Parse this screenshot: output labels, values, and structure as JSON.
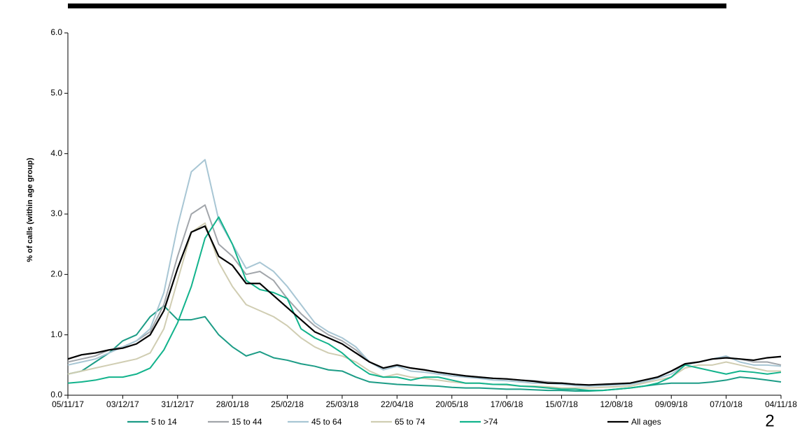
{
  "page_number": "2",
  "chart_data": {
    "type": "line",
    "y_label": "% of calls (within age group)",
    "x": [
      "05/11/17",
      "12/11/17",
      "19/11/17",
      "26/11/17",
      "03/12/17",
      "10/12/17",
      "17/12/17",
      "24/12/17",
      "31/12/17",
      "07/01/18",
      "14/01/18",
      "21/01/18",
      "28/01/18",
      "04/02/18",
      "11/02/18",
      "18/02/18",
      "25/02/18",
      "04/03/18",
      "11/03/18",
      "18/03/18",
      "25/03/18",
      "01/04/18",
      "08/04/18",
      "15/04/18",
      "22/04/18",
      "29/04/18",
      "06/05/18",
      "13/05/18",
      "20/05/18",
      "27/05/18",
      "03/06/18",
      "10/06/18",
      "17/06/18",
      "24/06/18",
      "01/07/18",
      "08/07/18",
      "15/07/18",
      "22/07/18",
      "29/07/18",
      "05/08/18",
      "12/08/18",
      "19/08/18",
      "26/08/18",
      "02/09/18",
      "09/09/18",
      "16/09/18",
      "23/09/18",
      "30/09/18",
      "07/10/18",
      "14/10/18",
      "21/10/18",
      "28/10/18",
      "04/11/18"
    ],
    "xlim": [
      "05/11/17",
      "04/11/18"
    ],
    "xticks": [
      "05/11/17",
      "03/12/17",
      "31/12/17",
      "28/01/18",
      "25/02/18",
      "25/03/18",
      "22/04/18",
      "20/05/18",
      "17/06/18",
      "15/07/18",
      "12/08/18",
      "09/09/18",
      "07/10/18",
      "04/11/18"
    ],
    "ylim": [
      0,
      6
    ],
    "yticks": [
      {
        "value": 0,
        "label": "0.0"
      },
      {
        "value": 1,
        "label": "1.0"
      },
      {
        "value": 2,
        "label": "2.0"
      },
      {
        "value": 3,
        "label": "3.0"
      },
      {
        "value": 4,
        "label": "4.0"
      },
      {
        "value": 5,
        "label": "5.0"
      },
      {
        "value": 6,
        "label": "6.0"
      }
    ],
    "series": [
      {
        "name": "5 to 14",
        "color": "#1c9c86",
        "values": [
          0.35,
          0.4,
          0.55,
          0.7,
          0.9,
          1.0,
          1.3,
          1.48,
          1.25,
          1.25,
          1.3,
          1.0,
          0.8,
          0.65,
          0.72,
          0.62,
          0.58,
          0.52,
          0.48,
          0.42,
          0.4,
          0.3,
          0.22,
          0.2,
          0.18,
          0.17,
          0.16,
          0.15,
          0.13,
          0.12,
          0.12,
          0.11,
          0.1,
          0.1,
          0.09,
          0.08,
          0.08,
          0.07,
          0.07,
          0.08,
          0.1,
          0.12,
          0.15,
          0.18,
          0.2,
          0.2,
          0.2,
          0.22,
          0.25,
          0.3,
          0.28,
          0.25,
          0.22
        ]
      },
      {
        "name": "15 to 44",
        "color": "#a1a5aa",
        "values": [
          0.55,
          0.6,
          0.65,
          0.75,
          0.8,
          0.9,
          1.05,
          1.5,
          2.3,
          3.0,
          3.15,
          2.5,
          2.3,
          2.0,
          2.05,
          1.9,
          1.6,
          1.35,
          1.15,
          1.0,
          0.9,
          0.75,
          0.55,
          0.45,
          0.5,
          0.45,
          0.42,
          0.38,
          0.35,
          0.32,
          0.3,
          0.28,
          0.27,
          0.25,
          0.24,
          0.22,
          0.2,
          0.18,
          0.17,
          0.18,
          0.19,
          0.2,
          0.25,
          0.3,
          0.4,
          0.5,
          0.55,
          0.6,
          0.62,
          0.6,
          0.55,
          0.55,
          0.5
        ]
      },
      {
        "name": "45 to 64",
        "color": "#a8c6d4",
        "values": [
          0.5,
          0.55,
          0.6,
          0.7,
          0.8,
          0.9,
          1.1,
          1.7,
          2.8,
          3.7,
          3.9,
          2.9,
          2.5,
          2.1,
          2.2,
          2.05,
          1.8,
          1.5,
          1.2,
          1.05,
          0.95,
          0.8,
          0.55,
          0.42,
          0.48,
          0.4,
          0.38,
          0.35,
          0.32,
          0.3,
          0.28,
          0.25,
          0.24,
          0.22,
          0.2,
          0.2,
          0.18,
          0.16,
          0.15,
          0.16,
          0.17,
          0.18,
          0.22,
          0.28,
          0.35,
          0.5,
          0.55,
          0.6,
          0.65,
          0.55,
          0.5,
          0.5,
          0.48
        ]
      },
      {
        "name": "65 to 74",
        "color": "#d0cdb2",
        "values": [
          0.35,
          0.4,
          0.45,
          0.5,
          0.55,
          0.6,
          0.7,
          1.1,
          1.9,
          2.7,
          2.85,
          2.2,
          1.8,
          1.5,
          1.4,
          1.3,
          1.15,
          0.95,
          0.8,
          0.7,
          0.65,
          0.55,
          0.4,
          0.3,
          0.35,
          0.3,
          0.28,
          0.25,
          0.22,
          0.2,
          0.2,
          0.18,
          0.17,
          0.15,
          0.15,
          0.14,
          0.12,
          0.12,
          0.12,
          0.13,
          0.14,
          0.15,
          0.2,
          0.25,
          0.3,
          0.45,
          0.5,
          0.5,
          0.55,
          0.5,
          0.45,
          0.4,
          0.4
        ]
      },
      {
        "name": ">74",
        "color": "#12b38c",
        "values": [
          0.2,
          0.22,
          0.25,
          0.3,
          0.3,
          0.35,
          0.45,
          0.75,
          1.2,
          1.8,
          2.6,
          2.95,
          2.5,
          1.9,
          1.75,
          1.7,
          1.6,
          1.1,
          0.95,
          0.85,
          0.7,
          0.5,
          0.35,
          0.3,
          0.3,
          0.25,
          0.3,
          0.3,
          0.25,
          0.2,
          0.2,
          0.18,
          0.18,
          0.15,
          0.14,
          0.12,
          0.1,
          0.1,
          0.08,
          0.08,
          0.1,
          0.12,
          0.15,
          0.2,
          0.3,
          0.5,
          0.45,
          0.4,
          0.35,
          0.4,
          0.38,
          0.35,
          0.38
        ]
      },
      {
        "name": "All ages",
        "color": "#000000",
        "values": [
          0.6,
          0.67,
          0.7,
          0.75,
          0.78,
          0.85,
          1.0,
          1.4,
          2.1,
          2.7,
          2.8,
          2.3,
          2.15,
          1.85,
          1.85,
          1.65,
          1.45,
          1.25,
          1.05,
          0.95,
          0.85,
          0.7,
          0.55,
          0.45,
          0.5,
          0.45,
          0.42,
          0.38,
          0.35,
          0.32,
          0.3,
          0.28,
          0.27,
          0.25,
          0.23,
          0.2,
          0.2,
          0.18,
          0.17,
          0.18,
          0.19,
          0.2,
          0.25,
          0.3,
          0.4,
          0.52,
          0.55,
          0.6,
          0.62,
          0.6,
          0.58,
          0.62,
          0.64
        ]
      }
    ]
  }
}
